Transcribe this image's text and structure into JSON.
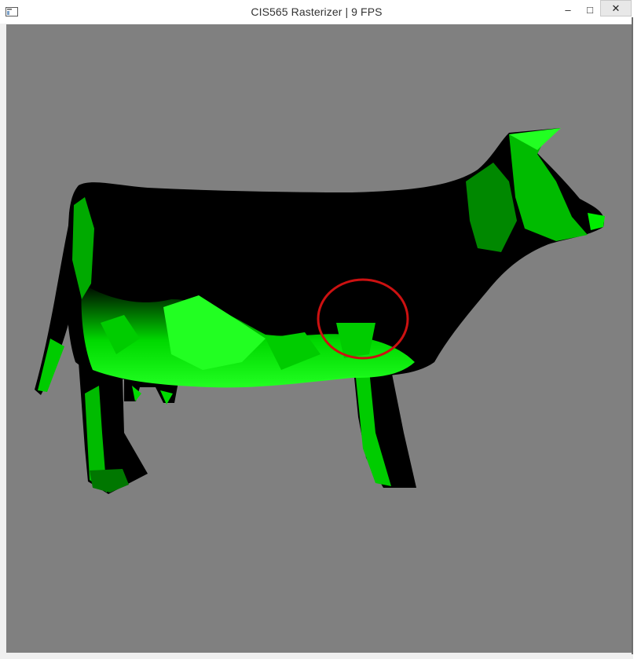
{
  "window": {
    "title": "CIS565 Rasterizer | 9 FPS",
    "controls": {
      "minimize": "–",
      "maximize": "□",
      "close": "✕"
    }
  },
  "viewport": {
    "background": "#808080",
    "model": "cow",
    "shading_color": "#00ff00",
    "annotation": {
      "shape": "circle",
      "color": "#cc1111"
    }
  }
}
